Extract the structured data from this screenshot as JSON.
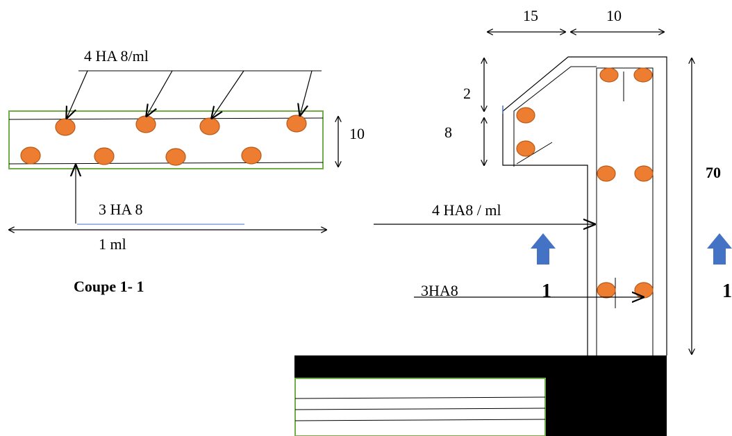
{
  "colors": {
    "bar_fill": "#ED7D31",
    "bar_stroke": "#B85A19",
    "section_outline": "#70AD47",
    "arrow_blue": "#4472C4",
    "ink": "#000000"
  },
  "section": {
    "top_bars_label": "4 HA 8/ml",
    "bottom_bars_label": "3 HA 8",
    "height_label": "10",
    "width_label": "1 ml",
    "caption": "Coupe 1- 1"
  },
  "elevation": {
    "dim_top_left": "15",
    "dim_top_right": "10",
    "dim_left_upper": "2",
    "dim_left_lower": "8",
    "dim_height": "70",
    "main_bars_label": "4 HA8 / ml",
    "dist_bars_label": "3HA8",
    "cut_label_left": "1",
    "cut_label_right": "1"
  }
}
